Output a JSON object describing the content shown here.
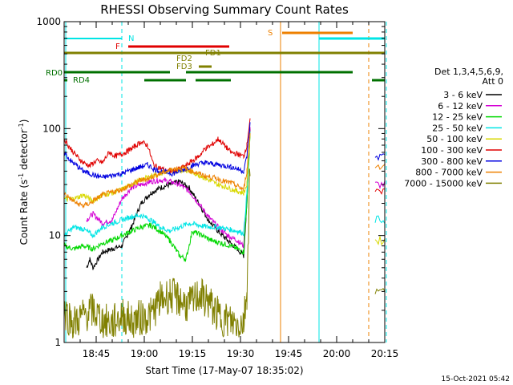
{
  "chart_data": {
    "type": "line",
    "title": "RHESSI Observing Summary Count Rates",
    "xlabel": "Start Time (17-May-07 18:35:02)",
    "ylabel": "Count Rate (s",
    "ylabel_sup1": "-1",
    "ylabel_mid": " detector",
    "ylabel_sup2": "-1",
    "ylabel_end": ")",
    "yscale": "log",
    "ylim": [
      1,
      1000
    ],
    "xlim_minutes": [
      0,
      100
    ],
    "x_ticks": [
      {
        "label": "18:45",
        "min": 10
      },
      {
        "label": "19:00",
        "min": 25
      },
      {
        "label": "19:15",
        "min": 40
      },
      {
        "label": "19:30",
        "min": 55
      },
      {
        "label": "19:45",
        "min": 70
      },
      {
        "label": "20:00",
        "min": 85
      },
      {
        "label": "20:15",
        "min": 100
      }
    ],
    "y_ticks": [
      {
        "label": "1",
        "value": 1
      },
      {
        "label": "10",
        "value": 10
      },
      {
        "label": "100",
        "value": 100
      },
      {
        "label": "1000",
        "value": 1000
      }
    ],
    "legend": {
      "header1": "Det 1,3,4,5,6,9,",
      "header2": "Att 0",
      "placement": "right"
    },
    "series": [
      {
        "name": "3 - 6 keV",
        "color": "#000000",
        "points": [
          [
            7,
            5
          ],
          [
            8,
            6
          ],
          [
            9,
            5
          ],
          [
            12,
            7
          ],
          [
            15,
            7.5
          ],
          [
            18,
            8
          ],
          [
            21,
            12
          ],
          [
            24,
            20
          ],
          [
            27,
            25
          ],
          [
            30,
            28
          ],
          [
            33,
            30
          ],
          [
            36,
            32
          ],
          [
            39,
            28
          ],
          [
            42,
            20
          ],
          [
            45,
            14
          ],
          [
            48,
            11
          ],
          [
            51,
            9
          ],
          [
            54,
            7.5
          ],
          [
            56,
            6.5
          ],
          [
            57,
            20
          ],
          [
            58,
            100
          ]
        ]
      },
      {
        "name": "6 - 12 keV",
        "color": "#d400d4",
        "points": [
          [
            7,
            14
          ],
          [
            9,
            16
          ],
          [
            12,
            13
          ],
          [
            15,
            14
          ],
          [
            18,
            22
          ],
          [
            21,
            28
          ],
          [
            24,
            30
          ],
          [
            27,
            32
          ],
          [
            30,
            33
          ],
          [
            33,
            32
          ],
          [
            36,
            30
          ],
          [
            39,
            26
          ],
          [
            42,
            20
          ],
          [
            45,
            15
          ],
          [
            48,
            12
          ],
          [
            51,
            10
          ],
          [
            54,
            9
          ],
          [
            56,
            8
          ],
          [
            57,
            22
          ],
          [
            58,
            100
          ],
          [
            100,
            30
          ]
        ]
      },
      {
        "name": "12 - 25 keV",
        "color": "#00d800",
        "points": [
          [
            0,
            8
          ],
          [
            3,
            7.5
          ],
          [
            6,
            8
          ],
          [
            9,
            7.5
          ],
          [
            12,
            8.5
          ],
          [
            15,
            9
          ],
          [
            18,
            10
          ],
          [
            21,
            11
          ],
          [
            24,
            12
          ],
          [
            27,
            12.5
          ],
          [
            30,
            11
          ],
          [
            33,
            9
          ],
          [
            36,
            6.5
          ],
          [
            38,
            6
          ],
          [
            40,
            11
          ],
          [
            43,
            10
          ],
          [
            46,
            9
          ],
          [
            49,
            8.5
          ],
          [
            52,
            8
          ],
          [
            54,
            7.5
          ],
          [
            56,
            7
          ],
          [
            57,
            20
          ],
          [
            58,
            90
          ]
        ]
      },
      {
        "name": "25 - 50 keV",
        "color": "#00e5e5",
        "points": [
          [
            0,
            10
          ],
          [
            3,
            12
          ],
          [
            6,
            11.5
          ],
          [
            9,
            10
          ],
          [
            12,
            12
          ],
          [
            15,
            13
          ],
          [
            18,
            14
          ],
          [
            21,
            15
          ],
          [
            24,
            15.5
          ],
          [
            27,
            14
          ],
          [
            30,
            12
          ],
          [
            33,
            11
          ],
          [
            36,
            12
          ],
          [
            39,
            13
          ],
          [
            42,
            12.5
          ],
          [
            45,
            12
          ],
          [
            48,
            12
          ],
          [
            51,
            11.5
          ],
          [
            54,
            11
          ],
          [
            56,
            10.5
          ],
          [
            57,
            25
          ],
          [
            58,
            90
          ],
          [
            100,
            14
          ]
        ]
      },
      {
        "name": "50 - 100 keV",
        "color": "#d8d800",
        "points": [
          [
            0,
            22
          ],
          [
            3,
            22
          ],
          [
            6,
            24
          ],
          [
            9,
            21
          ],
          [
            12,
            24
          ],
          [
            15,
            25
          ],
          [
            18,
            27
          ],
          [
            21,
            30
          ],
          [
            24,
            33
          ],
          [
            27,
            36
          ],
          [
            30,
            38
          ],
          [
            33,
            40
          ],
          [
            36,
            41
          ],
          [
            39,
            40
          ],
          [
            42,
            37
          ],
          [
            45,
            33
          ],
          [
            48,
            30
          ],
          [
            51,
            28
          ],
          [
            54,
            26
          ],
          [
            56,
            25
          ],
          [
            57,
            30
          ],
          [
            58,
            90
          ],
          [
            100,
            9
          ]
        ]
      },
      {
        "name": "100 - 300 keV",
        "color": "#e00000",
        "points": [
          [
            0,
            80
          ],
          [
            2,
            65
          ],
          [
            4,
            55
          ],
          [
            6,
            48
          ],
          [
            8,
            45
          ],
          [
            10,
            50
          ],
          [
            12,
            48
          ],
          [
            14,
            60
          ],
          [
            16,
            55
          ],
          [
            18,
            58
          ],
          [
            20,
            62
          ],
          [
            22,
            68
          ],
          [
            24,
            75
          ],
          [
            26,
            70
          ],
          [
            28,
            45
          ],
          [
            30,
            43
          ],
          [
            32,
            40
          ],
          [
            34,
            40
          ],
          [
            36,
            42
          ],
          [
            38,
            45
          ],
          [
            40,
            50
          ],
          [
            42,
            55
          ],
          [
            44,
            65
          ],
          [
            46,
            70
          ],
          [
            48,
            80
          ],
          [
            50,
            70
          ],
          [
            52,
            60
          ],
          [
            54,
            58
          ],
          [
            56,
            55
          ],
          [
            57,
            70
          ],
          [
            58,
            125
          ],
          [
            100,
            25
          ]
        ]
      },
      {
        "name": "300 - 800 keV",
        "color": "#0000e0",
        "points": [
          [
            0,
            60
          ],
          [
            2,
            50
          ],
          [
            4,
            45
          ],
          [
            6,
            40
          ],
          [
            8,
            38
          ],
          [
            10,
            36
          ],
          [
            12,
            35
          ],
          [
            14,
            36
          ],
          [
            16,
            37
          ],
          [
            18,
            38
          ],
          [
            20,
            40
          ],
          [
            22,
            42
          ],
          [
            24,
            44
          ],
          [
            26,
            46
          ],
          [
            28,
            42
          ],
          [
            30,
            40
          ],
          [
            32,
            39
          ],
          [
            34,
            38
          ],
          [
            36,
            40
          ],
          [
            38,
            42
          ],
          [
            40,
            45
          ],
          [
            42,
            47
          ],
          [
            44,
            48
          ],
          [
            46,
            47
          ],
          [
            48,
            46
          ],
          [
            50,
            45
          ],
          [
            52,
            44
          ],
          [
            54,
            42
          ],
          [
            56,
            40
          ],
          [
            57,
            55
          ],
          [
            58,
            110
          ],
          [
            100,
            55
          ]
        ]
      },
      {
        "name": "800 - 7000 keV",
        "color": "#ee8000",
        "points": [
          [
            0,
            25
          ],
          [
            2,
            22
          ],
          [
            4,
            20
          ],
          [
            6,
            19
          ],
          [
            8,
            20
          ],
          [
            10,
            22
          ],
          [
            12,
            24
          ],
          [
            14,
            25
          ],
          [
            16,
            26
          ],
          [
            18,
            27
          ],
          [
            20,
            29
          ],
          [
            22,
            31
          ],
          [
            24,
            33
          ],
          [
            26,
            34
          ],
          [
            28,
            36
          ],
          [
            30,
            38
          ],
          [
            32,
            40
          ],
          [
            34,
            42
          ],
          [
            36,
            43
          ],
          [
            38,
            42
          ],
          [
            40,
            40
          ],
          [
            42,
            38
          ],
          [
            44,
            36
          ],
          [
            46,
            35
          ],
          [
            48,
            34
          ],
          [
            50,
            32
          ],
          [
            52,
            31
          ],
          [
            54,
            29
          ],
          [
            56,
            27
          ],
          [
            57,
            40
          ],
          [
            58,
            90
          ],
          [
            100,
            45
          ]
        ]
      },
      {
        "name": "7000 - 15000 keV",
        "color": "#808000",
        "points": [
          [
            0,
            2
          ],
          [
            3,
            1.5
          ],
          [
            6,
            1.8
          ],
          [
            9,
            2
          ],
          [
            12,
            1.6
          ],
          [
            15,
            1.5
          ],
          [
            18,
            1.8
          ],
          [
            21,
            1.6
          ],
          [
            24,
            1.7
          ],
          [
            27,
            1.8
          ],
          [
            30,
            2.5
          ],
          [
            33,
            2.8
          ],
          [
            36,
            2.5
          ],
          [
            39,
            2.2
          ],
          [
            42,
            2.8
          ],
          [
            45,
            2.4
          ],
          [
            48,
            1.8
          ],
          [
            51,
            1.6
          ],
          [
            54,
            1.5
          ],
          [
            56,
            1.6
          ],
          [
            57,
            3
          ],
          [
            58,
            50
          ],
          [
            100,
            3
          ]
        ]
      }
    ],
    "annotations": [
      {
        "label": "N",
        "color": "#00e5e5"
      },
      {
        "label": "F",
        "color": "#e00000"
      },
      {
        "label": "FD1",
        "color": "#808000"
      },
      {
        "label": "FD2",
        "color": "#808000"
      },
      {
        "label": "FD3",
        "color": "#808000"
      },
      {
        "label": "S",
        "color": "#ee8000"
      },
      {
        "label": "RD0",
        "color": "#007000"
      },
      {
        "label": "RD4",
        "color": "#007000"
      }
    ],
    "timestamp": "15-Oct-2021 05:42"
  }
}
